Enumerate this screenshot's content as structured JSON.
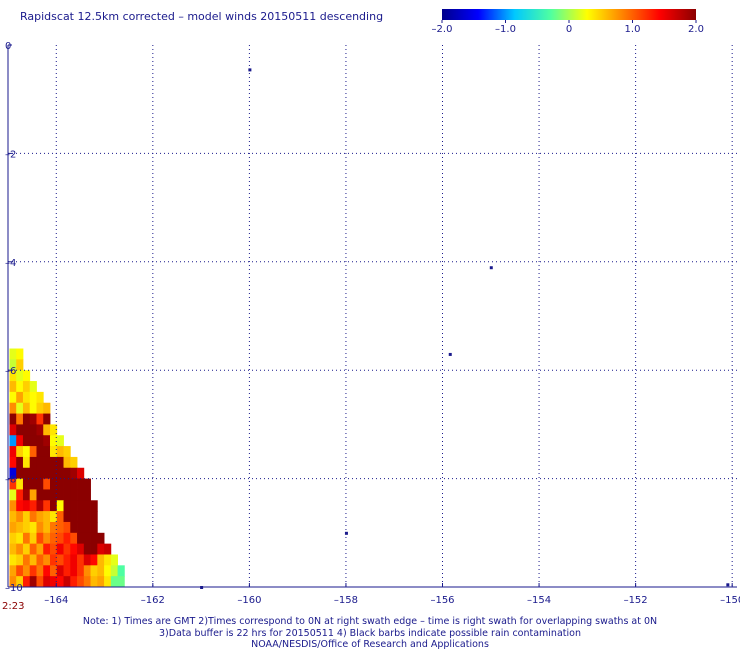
{
  "chart_data": {
    "type": "heatmap",
    "title": "Rapidscat 12.5km corrected – model winds 20150511 descending",
    "xlabel": "",
    "ylabel": "",
    "xlim": [
      -165.0,
      -149.9
    ],
    "ylim": [
      -10.0,
      0.0
    ],
    "xticks": [
      -164,
      -162,
      -160,
      -158,
      -156,
      -154,
      -152,
      -150
    ],
    "xtick_labels": [
      "–164",
      "–162",
      "–160",
      "–158",
      "–156",
      "–154",
      "–152",
      "–150"
    ],
    "yticks": [
      0,
      -2,
      -4,
      -6,
      -8,
      -10
    ],
    "ytick_labels": [
      "0",
      "–2",
      "–4",
      "–6",
      "–8",
      "–10"
    ],
    "grid": true,
    "colorbar": {
      "min": -2.0,
      "max": 2.0,
      "ticks": [
        -2.0,
        -1.0,
        0,
        1.0,
        2.0
      ],
      "tick_labels": [
        "–2.0",
        "–1.0",
        "0",
        "1.0",
        "2.0"
      ],
      "colors": [
        "#00008b",
        "#0000ff",
        "#00c8ff",
        "#50ffa0",
        "#ffff00",
        "#ff8000",
        "#ff0000",
        "#8b0000"
      ]
    },
    "swath_time": "2:23",
    "cell_size_deg": [
      0.14,
      0.2
    ],
    "cells": [
      {
        "lon": -164.9,
        "lat": -5.7,
        "v": 0.2
      },
      {
        "lon": -164.76,
        "lat": -5.7,
        "v": 0.3
      },
      {
        "lon": -164.9,
        "lat": -5.9,
        "v": 0.1
      },
      {
        "lon": -164.76,
        "lat": -5.9,
        "v": 0.5
      },
      {
        "lon": -164.9,
        "lat": -6.1,
        "v": 0.4
      },
      {
        "lon": -164.76,
        "lat": -6.1,
        "v": 0.2
      },
      {
        "lon": -164.62,
        "lat": -6.1,
        "v": 0.3
      },
      {
        "lon": -164.9,
        "lat": -6.3,
        "v": 0.6
      },
      {
        "lon": -164.76,
        "lat": -6.3,
        "v": 0.3
      },
      {
        "lon": -164.62,
        "lat": -6.3,
        "v": 0.5
      },
      {
        "lon": -164.48,
        "lat": -6.3,
        "v": 0.2
      },
      {
        "lon": -164.9,
        "lat": -6.5,
        "v": 0.3
      },
      {
        "lon": -164.76,
        "lat": -6.5,
        "v": 0.7
      },
      {
        "lon": -164.62,
        "lat": -6.5,
        "v": 0.4
      },
      {
        "lon": -164.48,
        "lat": -6.5,
        "v": 0.3
      },
      {
        "lon": -164.34,
        "lat": -6.5,
        "v": 0.4
      },
      {
        "lon": -164.9,
        "lat": -6.7,
        "v": 0.8
      },
      {
        "lon": -164.76,
        "lat": -6.7,
        "v": 0.2
      },
      {
        "lon": -164.62,
        "lat": -6.7,
        "v": 0.6
      },
      {
        "lon": -164.48,
        "lat": -6.7,
        "v": 0.3
      },
      {
        "lon": -164.34,
        "lat": -6.7,
        "v": 0.5
      },
      {
        "lon": -164.2,
        "lat": -6.7,
        "v": 0.6
      },
      {
        "lon": -164.9,
        "lat": -6.9,
        "v": 2.0
      },
      {
        "lon": -164.76,
        "lat": -6.9,
        "v": 0.9
      },
      {
        "lon": -164.62,
        "lat": -6.9,
        "v": 2.0
      },
      {
        "lon": -164.48,
        "lat": -6.9,
        "v": 1.9
      },
      {
        "lon": -164.34,
        "lat": -6.9,
        "v": 1.2
      },
      {
        "lon": -164.2,
        "lat": -6.9,
        "v": 2.0
      },
      {
        "lon": -164.9,
        "lat": -7.1,
        "v": 1.6
      },
      {
        "lon": -164.76,
        "lat": -7.1,
        "v": 2.0
      },
      {
        "lon": -164.62,
        "lat": -7.1,
        "v": 2.0
      },
      {
        "lon": -164.48,
        "lat": -7.1,
        "v": 2.0
      },
      {
        "lon": -164.34,
        "lat": -7.1,
        "v": 1.9
      },
      {
        "lon": -164.2,
        "lat": -7.1,
        "v": 0.6
      },
      {
        "lon": -164.06,
        "lat": -7.1,
        "v": 0.4
      },
      {
        "lon": -164.9,
        "lat": -7.3,
        "v": -1.0
      },
      {
        "lon": -164.76,
        "lat": -7.3,
        "v": 1.5
      },
      {
        "lon": -164.62,
        "lat": -7.3,
        "v": 2.0
      },
      {
        "lon": -164.48,
        "lat": -7.3,
        "v": 2.0
      },
      {
        "lon": -164.34,
        "lat": -7.3,
        "v": 2.0
      },
      {
        "lon": -164.2,
        "lat": -7.3,
        "v": 1.9
      },
      {
        "lon": -164.06,
        "lat": -7.3,
        "v": 0.3
      },
      {
        "lon": -163.92,
        "lat": -7.3,
        "v": 0.2
      },
      {
        "lon": -164.9,
        "lat": -7.5,
        "v": 1.5
      },
      {
        "lon": -164.76,
        "lat": -7.5,
        "v": 0.5
      },
      {
        "lon": -164.62,
        "lat": -7.5,
        "v": 0.3
      },
      {
        "lon": -164.48,
        "lat": -7.5,
        "v": 1.0
      },
      {
        "lon": -164.34,
        "lat": -7.5,
        "v": 2.0
      },
      {
        "lon": -164.2,
        "lat": -7.5,
        "v": 2.0
      },
      {
        "lon": -164.06,
        "lat": -7.5,
        "v": 0.4
      },
      {
        "lon": -163.92,
        "lat": -7.5,
        "v": 0.6
      },
      {
        "lon": -163.78,
        "lat": -7.5,
        "v": 0.5
      },
      {
        "lon": -164.9,
        "lat": -7.7,
        "v": 1.4
      },
      {
        "lon": -164.76,
        "lat": -7.7,
        "v": 2.0
      },
      {
        "lon": -164.62,
        "lat": -7.7,
        "v": 0.4
      },
      {
        "lon": -164.48,
        "lat": -7.7,
        "v": 2.0
      },
      {
        "lon": -164.34,
        "lat": -7.7,
        "v": 2.0
      },
      {
        "lon": -164.2,
        "lat": -7.7,
        "v": 2.0
      },
      {
        "lon": -164.06,
        "lat": -7.7,
        "v": 2.0
      },
      {
        "lon": -163.92,
        "lat": -7.7,
        "v": 2.0
      },
      {
        "lon": -163.78,
        "lat": -7.7,
        "v": 0.6
      },
      {
        "lon": -163.64,
        "lat": -7.7,
        "v": 0.5
      },
      {
        "lon": -164.9,
        "lat": -7.9,
        "v": -1.6
      },
      {
        "lon": -164.76,
        "lat": -7.9,
        "v": 2.0
      },
      {
        "lon": -164.62,
        "lat": -7.9,
        "v": 2.0
      },
      {
        "lon": -164.48,
        "lat": -7.9,
        "v": 2.0
      },
      {
        "lon": -164.34,
        "lat": -7.9,
        "v": 2.0
      },
      {
        "lon": -164.2,
        "lat": -7.9,
        "v": 2.0
      },
      {
        "lon": -164.06,
        "lat": -7.9,
        "v": 2.0
      },
      {
        "lon": -163.92,
        "lat": -7.9,
        "v": 2.0
      },
      {
        "lon": -163.78,
        "lat": -7.9,
        "v": 2.0
      },
      {
        "lon": -163.64,
        "lat": -7.9,
        "v": 1.9
      },
      {
        "lon": -163.5,
        "lat": -7.9,
        "v": 1.6
      },
      {
        "lon": -164.9,
        "lat": -8.1,
        "v": 1.2
      },
      {
        "lon": -164.76,
        "lat": -8.1,
        "v": 0.4
      },
      {
        "lon": -164.62,
        "lat": -8.1,
        "v": 2.0
      },
      {
        "lon": -164.48,
        "lat": -8.1,
        "v": 2.0
      },
      {
        "lon": -164.34,
        "lat": -8.1,
        "v": 2.0
      },
      {
        "lon": -164.2,
        "lat": -8.1,
        "v": 1.1
      },
      {
        "lon": -164.06,
        "lat": -8.1,
        "v": 2.0
      },
      {
        "lon": -163.92,
        "lat": -8.1,
        "v": 2.0
      },
      {
        "lon": -163.78,
        "lat": -8.1,
        "v": 2.0
      },
      {
        "lon": -163.64,
        "lat": -8.1,
        "v": 2.0
      },
      {
        "lon": -163.5,
        "lat": -8.1,
        "v": 2.0
      },
      {
        "lon": -163.36,
        "lat": -8.1,
        "v": 2.0
      },
      {
        "lon": -164.9,
        "lat": -8.3,
        "v": 0.2
      },
      {
        "lon": -164.76,
        "lat": -8.3,
        "v": 1.3
      },
      {
        "lon": -164.62,
        "lat": -8.3,
        "v": 1.9
      },
      {
        "lon": -164.48,
        "lat": -8.3,
        "v": 0.7
      },
      {
        "lon": -164.34,
        "lat": -8.3,
        "v": 2.0
      },
      {
        "lon": -164.2,
        "lat": -8.3,
        "v": 2.0
      },
      {
        "lon": -164.06,
        "lat": -8.3,
        "v": 2.0
      },
      {
        "lon": -163.92,
        "lat": -8.3,
        "v": 2.0
      },
      {
        "lon": -163.78,
        "lat": -8.3,
        "v": 2.0
      },
      {
        "lon": -163.64,
        "lat": -8.3,
        "v": 2.0
      },
      {
        "lon": -163.5,
        "lat": -8.3,
        "v": 2.0
      },
      {
        "lon": -163.36,
        "lat": -8.3,
        "v": 2.0
      },
      {
        "lon": -164.9,
        "lat": -8.5,
        "v": 0.8
      },
      {
        "lon": -164.76,
        "lat": -8.5,
        "v": 1.4
      },
      {
        "lon": -164.62,
        "lat": -8.5,
        "v": 1.5
      },
      {
        "lon": -164.48,
        "lat": -8.5,
        "v": 1.3
      },
      {
        "lon": -164.34,
        "lat": -8.5,
        "v": 1.8
      },
      {
        "lon": -164.2,
        "lat": -8.5,
        "v": 1.2
      },
      {
        "lon": -164.06,
        "lat": -8.5,
        "v": 2.0
      },
      {
        "lon": -163.92,
        "lat": -8.5,
        "v": 0.3
      },
      {
        "lon": -163.78,
        "lat": -8.5,
        "v": 2.0
      },
      {
        "lon": -163.64,
        "lat": -8.5,
        "v": 2.0
      },
      {
        "lon": -163.5,
        "lat": -8.5,
        "v": 2.0
      },
      {
        "lon": -163.36,
        "lat": -8.5,
        "v": 2.0
      },
      {
        "lon": -163.22,
        "lat": -8.5,
        "v": 2.0
      },
      {
        "lon": -164.9,
        "lat": -8.7,
        "v": 0.6
      },
      {
        "lon": -164.76,
        "lat": -8.7,
        "v": 0.8
      },
      {
        "lon": -164.62,
        "lat": -8.7,
        "v": 0.5
      },
      {
        "lon": -164.48,
        "lat": -8.7,
        "v": 0.9
      },
      {
        "lon": -164.34,
        "lat": -8.7,
        "v": 0.7
      },
      {
        "lon": -164.2,
        "lat": -8.7,
        "v": 0.6
      },
      {
        "lon": -164.06,
        "lat": -8.7,
        "v": 0.4
      },
      {
        "lon": -163.92,
        "lat": -8.7,
        "v": 1.0
      },
      {
        "lon": -163.78,
        "lat": -8.7,
        "v": 2.0
      },
      {
        "lon": -163.64,
        "lat": -8.7,
        "v": 2.0
      },
      {
        "lon": -163.5,
        "lat": -8.7,
        "v": 2.0
      },
      {
        "lon": -163.36,
        "lat": -8.7,
        "v": 2.0
      },
      {
        "lon": -163.22,
        "lat": -8.7,
        "v": 2.0
      },
      {
        "lon": -164.9,
        "lat": -8.9,
        "v": 0.7
      },
      {
        "lon": -164.76,
        "lat": -8.9,
        "v": 0.6
      },
      {
        "lon": -164.62,
        "lat": -8.9,
        "v": 0.5
      },
      {
        "lon": -164.48,
        "lat": -8.9,
        "v": 0.4
      },
      {
        "lon": -164.34,
        "lat": -8.9,
        "v": 0.8
      },
      {
        "lon": -164.2,
        "lat": -8.9,
        "v": 0.6
      },
      {
        "lon": -164.06,
        "lat": -8.9,
        "v": 0.9
      },
      {
        "lon": -163.92,
        "lat": -8.9,
        "v": 1.0
      },
      {
        "lon": -163.78,
        "lat": -8.9,
        "v": 1.1
      },
      {
        "lon": -163.64,
        "lat": -8.9,
        "v": 2.0
      },
      {
        "lon": -163.5,
        "lat": -8.9,
        "v": 2.0
      },
      {
        "lon": -163.36,
        "lat": -8.9,
        "v": 2.0
      },
      {
        "lon": -163.22,
        "lat": -8.9,
        "v": 2.0
      },
      {
        "lon": -164.9,
        "lat": -9.1,
        "v": 0.5
      },
      {
        "lon": -164.76,
        "lat": -9.1,
        "v": 0.4
      },
      {
        "lon": -164.62,
        "lat": -9.1,
        "v": 0.9
      },
      {
        "lon": -164.48,
        "lat": -9.1,
        "v": 0.5
      },
      {
        "lon": -164.34,
        "lat": -9.1,
        "v": 1.1
      },
      {
        "lon": -164.2,
        "lat": -9.1,
        "v": 0.8
      },
      {
        "lon": -164.06,
        "lat": -9.1,
        "v": 1.0
      },
      {
        "lon": -163.92,
        "lat": -9.1,
        "v": 1.1
      },
      {
        "lon": -163.78,
        "lat": -9.1,
        "v": 1.3
      },
      {
        "lon": -163.64,
        "lat": -9.1,
        "v": 1.1
      },
      {
        "lon": -163.5,
        "lat": -9.1,
        "v": 2.0
      },
      {
        "lon": -163.36,
        "lat": -9.1,
        "v": 2.0
      },
      {
        "lon": -163.22,
        "lat": -9.1,
        "v": 2.0
      },
      {
        "lon": -163.08,
        "lat": -9.1,
        "v": 2.0
      },
      {
        "lon": -164.9,
        "lat": -9.3,
        "v": 0.6
      },
      {
        "lon": -164.76,
        "lat": -9.3,
        "v": 0.8
      },
      {
        "lon": -164.62,
        "lat": -9.3,
        "v": 0.5
      },
      {
        "lon": -164.48,
        "lat": -9.3,
        "v": 1.0
      },
      {
        "lon": -164.34,
        "lat": -9.3,
        "v": 0.7
      },
      {
        "lon": -164.2,
        "lat": -9.3,
        "v": 1.3
      },
      {
        "lon": -164.06,
        "lat": -9.3,
        "v": 1.1
      },
      {
        "lon": -163.92,
        "lat": -9.3,
        "v": 1.5
      },
      {
        "lon": -163.78,
        "lat": -9.3,
        "v": 1.2
      },
      {
        "lon": -163.64,
        "lat": -9.3,
        "v": 1.4
      },
      {
        "lon": -163.5,
        "lat": -9.3,
        "v": 1.6
      },
      {
        "lon": -163.36,
        "lat": -9.3,
        "v": 2.0
      },
      {
        "lon": -163.22,
        "lat": -9.3,
        "v": 2.0
      },
      {
        "lon": -163.08,
        "lat": -9.3,
        "v": 1.6
      },
      {
        "lon": -162.94,
        "lat": -9.3,
        "v": 1.7
      },
      {
        "lon": -164.9,
        "lat": -9.5,
        "v": 0.4
      },
      {
        "lon": -164.76,
        "lat": -9.5,
        "v": 0.5
      },
      {
        "lon": -164.62,
        "lat": -9.5,
        "v": 0.9
      },
      {
        "lon": -164.48,
        "lat": -9.5,
        "v": 0.6
      },
      {
        "lon": -164.34,
        "lat": -9.5,
        "v": 1.0
      },
      {
        "lon": -164.2,
        "lat": -9.5,
        "v": 0.8
      },
      {
        "lon": -164.06,
        "lat": -9.5,
        "v": 1.2
      },
      {
        "lon": -163.92,
        "lat": -9.5,
        "v": 1.1
      },
      {
        "lon": -163.78,
        "lat": -9.5,
        "v": 1.3
      },
      {
        "lon": -163.64,
        "lat": -9.5,
        "v": 1.5
      },
      {
        "lon": -163.5,
        "lat": -9.5,
        "v": 1.2
      },
      {
        "lon": -163.36,
        "lat": -9.5,
        "v": 1.6
      },
      {
        "lon": -163.22,
        "lat": -9.5,
        "v": 1.4
      },
      {
        "lon": -163.08,
        "lat": -9.5,
        "v": 0.6
      },
      {
        "lon": -162.94,
        "lat": -9.5,
        "v": 0.4
      },
      {
        "lon": -162.8,
        "lat": -9.5,
        "v": 0.2
      },
      {
        "lon": -164.9,
        "lat": -9.7,
        "v": 0.7
      },
      {
        "lon": -164.76,
        "lat": -9.7,
        "v": 1.1
      },
      {
        "lon": -164.62,
        "lat": -9.7,
        "v": 0.8
      },
      {
        "lon": -164.48,
        "lat": -9.7,
        "v": 1.2
      },
      {
        "lon": -164.34,
        "lat": -9.7,
        "v": 0.9
      },
      {
        "lon": -164.2,
        "lat": -9.7,
        "v": 1.4
      },
      {
        "lon": -164.06,
        "lat": -9.7,
        "v": 1.0
      },
      {
        "lon": -163.92,
        "lat": -9.7,
        "v": 1.6
      },
      {
        "lon": -163.78,
        "lat": -9.7,
        "v": 1.3
      },
      {
        "lon": -163.64,
        "lat": -9.7,
        "v": 1.5
      },
      {
        "lon": -163.5,
        "lat": -9.7,
        "v": 1.2
      },
      {
        "lon": -163.36,
        "lat": -9.7,
        "v": 0.8
      },
      {
        "lon": -163.22,
        "lat": -9.7,
        "v": 0.5
      },
      {
        "lon": -163.08,
        "lat": -9.7,
        "v": 0.6
      },
      {
        "lon": -162.94,
        "lat": -9.7,
        "v": 0.3
      },
      {
        "lon": -162.8,
        "lat": -9.7,
        "v": 0.1
      },
      {
        "lon": -162.66,
        "lat": -9.7,
        "v": -0.3
      },
      {
        "lon": -164.9,
        "lat": -9.9,
        "v": 0.8
      },
      {
        "lon": -164.76,
        "lat": -9.9,
        "v": 0.5
      },
      {
        "lon": -164.62,
        "lat": -9.9,
        "v": 1.3
      },
      {
        "lon": -164.48,
        "lat": -9.9,
        "v": 1.9
      },
      {
        "lon": -164.34,
        "lat": -9.9,
        "v": 1.1
      },
      {
        "lon": -164.2,
        "lat": -9.9,
        "v": 1.6
      },
      {
        "lon": -164.06,
        "lat": -9.9,
        "v": 1.5
      },
      {
        "lon": -163.92,
        "lat": -9.9,
        "v": 1.4
      },
      {
        "lon": -163.78,
        "lat": -9.9,
        "v": 1.7
      },
      {
        "lon": -163.64,
        "lat": -9.9,
        "v": 1.3
      },
      {
        "lon": -163.5,
        "lat": -9.9,
        "v": 1.1
      },
      {
        "lon": -163.36,
        "lat": -9.9,
        "v": 0.9
      },
      {
        "lon": -163.22,
        "lat": -9.9,
        "v": 0.6
      },
      {
        "lon": -163.08,
        "lat": -9.9,
        "v": 0.7
      },
      {
        "lon": -162.94,
        "lat": -9.9,
        "v": 0.4
      },
      {
        "lon": -162.8,
        "lat": -9.9,
        "v": -0.2
      },
      {
        "lon": -162.66,
        "lat": -9.9,
        "v": -0.2
      }
    ],
    "isolated_marks": [
      {
        "lon": -160.0,
        "lat": -0.45
      },
      {
        "lon": -155.0,
        "lat": -4.1
      },
      {
        "lon": -155.85,
        "lat": -5.7
      },
      {
        "lon": -158.0,
        "lat": -9.0
      },
      {
        "lon": -161.0,
        "lat": -10.0
      },
      {
        "lon": -150.1,
        "lat": -9.95
      }
    ]
  },
  "notes": [
    "Note: 1) Times are GMT 2)Times correspond to 0N at right swath edge – time is right swath for overlapping swaths at 0N",
    "3)Data buffer is 22 hrs for 20150511 4) Black barbs indicate possible rain contamination",
    "NOAA/NESDIS/Office of Research and Applications"
  ]
}
